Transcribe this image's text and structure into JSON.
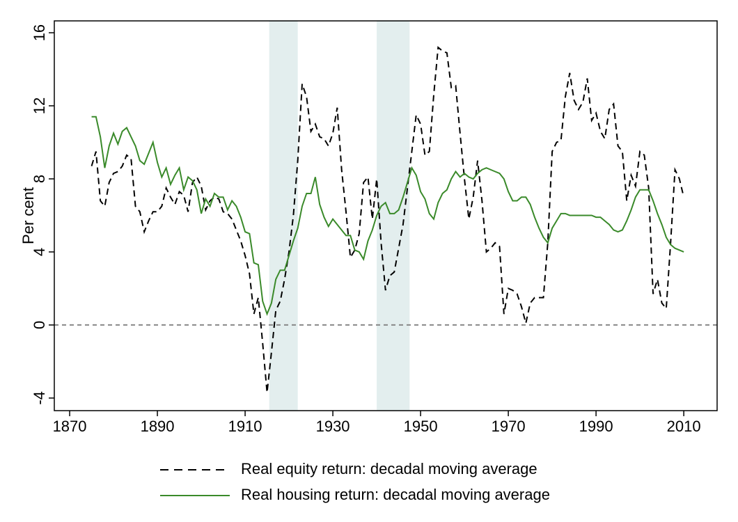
{
  "chart_data": {
    "type": "line",
    "y_label": "Per cent",
    "xlim": [
      1866.5,
      2017.6
    ],
    "ylim": [
      -4.69,
      16.65
    ],
    "xticks": [
      1870,
      1890,
      1910,
      1930,
      1950,
      1970,
      1990,
      2010
    ],
    "yticks": [
      -4,
      0,
      4,
      8,
      12,
      16
    ],
    "reference_line": 0,
    "shaded_periods": [
      [
        1915.5,
        1922
      ],
      [
        1940,
        1947.5
      ]
    ],
    "legend": "bottom",
    "x": [
      1875,
      1876,
      1877,
      1878,
      1879,
      1880,
      1881,
      1882,
      1883,
      1884,
      1885,
      1886,
      1887,
      1888,
      1889,
      1890,
      1891,
      1892,
      1893,
      1894,
      1895,
      1896,
      1897,
      1898,
      1899,
      1900,
      1901,
      1902,
      1903,
      1904,
      1905,
      1906,
      1907,
      1908,
      1909,
      1910,
      1911,
      1912,
      1913,
      1914,
      1915,
      1916,
      1917,
      1918,
      1919,
      1920,
      1921,
      1922,
      1923,
      1924,
      1925,
      1926,
      1927,
      1928,
      1929,
      1930,
      1931,
      1932,
      1933,
      1934,
      1935,
      1936,
      1937,
      1938,
      1939,
      1940,
      1941,
      1942,
      1943,
      1944,
      1945,
      1946,
      1947,
      1948,
      1949,
      1950,
      1951,
      1952,
      1953,
      1954,
      1955,
      1956,
      1957,
      1958,
      1959,
      1960,
      1961,
      1962,
      1963,
      1964,
      1965,
      1966,
      1967,
      1968,
      1969,
      1970,
      1971,
      1972,
      1973,
      1974,
      1975,
      1976,
      1977,
      1978,
      1979,
      1980,
      1981,
      1982,
      1983,
      1984,
      1985,
      1986,
      1987,
      1988,
      1989,
      1990,
      1991,
      1992,
      1993,
      1994,
      1995,
      1996,
      1997,
      1998,
      1999,
      2000,
      2001,
      2002,
      2003,
      2004,
      2005,
      2006,
      2007,
      2008,
      2009,
      2010
    ],
    "series": [
      {
        "name": "Real equity return: decadal moving average",
        "color": "#000000",
        "style": "dashed",
        "values": [
          8.7,
          9.5,
          6.8,
          6.5,
          7.8,
          8.3,
          8.4,
          8.7,
          9.3,
          9.1,
          6.5,
          6.2,
          5.1,
          5.7,
          6.2,
          6.2,
          6.5,
          7.5,
          7.0,
          6.6,
          7.3,
          7.1,
          6.2,
          7.8,
          8.1,
          7.6,
          6.3,
          6.8,
          7.0,
          6.9,
          6.2,
          6.1,
          5.8,
          5.2,
          4.6,
          3.8,
          2.8,
          0.6,
          1.5,
          -1.0,
          -3.7,
          -1.5,
          0.8,
          1.3,
          2.5,
          4.0,
          6.0,
          9.0,
          13.2,
          12.5,
          10.6,
          11.0,
          10.3,
          10.2,
          9.8,
          10.5,
          11.9,
          8.5,
          6.2,
          3.7,
          4.1,
          5.0,
          7.8,
          8.1,
          5.8,
          8.0,
          4.5,
          1.9,
          2.7,
          2.9,
          4.2,
          5.5,
          7.5,
          9.5,
          11.5,
          11.0,
          9.3,
          9.5,
          12.6,
          15.2,
          15.0,
          14.9,
          13.0,
          13.1,
          10.5,
          8.0,
          5.8,
          7.0,
          9.0,
          6.8,
          4.0,
          4.2,
          4.5,
          4.3,
          0.6,
          2.0,
          1.9,
          1.7,
          1.0,
          0.1,
          1.2,
          1.5,
          1.5,
          1.5,
          4.5,
          9.5,
          10.0,
          10.1,
          12.5,
          13.8,
          12.3,
          11.8,
          12.2,
          13.5,
          11.2,
          11.6,
          10.6,
          10.2,
          11.8,
          12.1,
          9.8,
          9.5,
          6.8,
          8.2,
          7.6,
          9.5,
          9.3,
          7.5,
          1.7,
          2.5,
          1.2,
          0.9,
          4.5,
          8.5,
          8.0,
          7.0
        ]
      },
      {
        "name": "Real housing return: decadal moving average",
        "color": "#3a8a2a",
        "style": "solid",
        "values": [
          11.4,
          11.4,
          10.3,
          8.6,
          9.8,
          10.5,
          9.9,
          10.6,
          10.8,
          10.3,
          9.8,
          9.0,
          8.8,
          9.4,
          10.0,
          8.9,
          8.1,
          8.6,
          7.7,
          8.2,
          8.6,
          7.4,
          8.1,
          7.9,
          7.4,
          6.1,
          6.9,
          6.5,
          7.2,
          7.0,
          7.0,
          6.3,
          6.8,
          6.5,
          5.9,
          5.1,
          5.0,
          3.4,
          3.3,
          1.3,
          0.6,
          1.2,
          2.5,
          3.0,
          3.0,
          3.8,
          4.6,
          5.3,
          6.5,
          7.2,
          7.2,
          8.1,
          6.6,
          5.9,
          5.4,
          5.8,
          5.5,
          5.2,
          4.9,
          4.9,
          4.1,
          4.0,
          3.6,
          4.6,
          5.2,
          6.0,
          6.5,
          6.7,
          6.1,
          6.1,
          6.3,
          7.0,
          7.8,
          8.6,
          8.2,
          7.3,
          6.9,
          6.1,
          5.8,
          6.7,
          7.2,
          7.4,
          8.0,
          8.4,
          8.1,
          8.3,
          8.1,
          8.0,
          8.3,
          8.5,
          8.6,
          8.5,
          8.4,
          8.3,
          8.0,
          7.3,
          6.8,
          6.8,
          7.0,
          7.0,
          6.6,
          5.9,
          5.3,
          4.8,
          4.5,
          5.3,
          5.7,
          6.1,
          6.1,
          6.0,
          6.0,
          6.0,
          6.0,
          6.0,
          6.0,
          5.9,
          5.9,
          5.7,
          5.5,
          5.2,
          5.1,
          5.2,
          5.7,
          6.3,
          7.0,
          7.4,
          7.4,
          7.4,
          6.8,
          6.1,
          5.5,
          4.8,
          4.4,
          4.2,
          4.1,
          4.0
        ]
      }
    ]
  }
}
